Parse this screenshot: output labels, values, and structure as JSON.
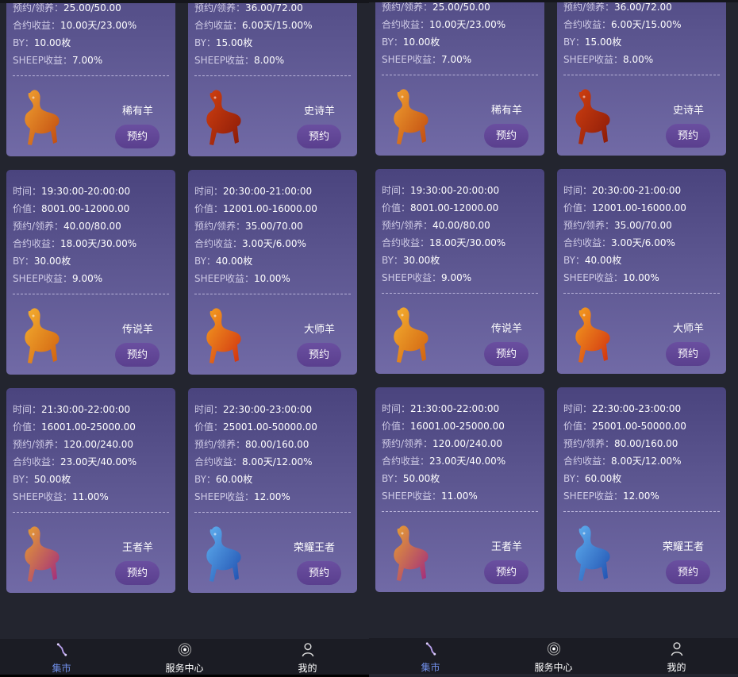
{
  "labels": {
    "time": "时间：",
    "value": "价值：",
    "reserve": "预约/领养：",
    "contract": "合约收益：",
    "by": "BY：",
    "sheep": "SHEEP收益："
  },
  "button_label": "预约",
  "colors": {
    "accent": "#6f8ee8",
    "card_top": "#4a447e",
    "card_bottom": "#716aa6",
    "button": "#5f4596"
  },
  "cards": [
    {
      "reserve": "25.00/50.00",
      "contract": "10.00天/23.00%",
      "by": "10.00枚",
      "sheep": "7.00%",
      "name": "稀有羊",
      "icon": "rare-sheep-icon",
      "c1": "#f0a030",
      "c2": "#c04a10",
      "cut": true
    },
    {
      "reserve": "36.00/72.00",
      "contract": "6.00天/15.00%",
      "by": "15.00枚",
      "sheep": "8.00%",
      "name": "史诗羊",
      "icon": "epic-sheep-icon",
      "c1": "#d04010",
      "c2": "#8a1a08",
      "cut": true
    },
    {
      "time": "19:30:00-20:00:00",
      "value": "8001.00-12000.00",
      "reserve": "40.00/80.00",
      "contract": "18.00天/30.00%",
      "by": "30.00枚",
      "sheep": "9.00%",
      "name": "传说羊",
      "icon": "legend-sheep-icon",
      "c1": "#f5b030",
      "c2": "#d06010"
    },
    {
      "time": "20:30:00-21:00:00",
      "value": "12001.00-16000.00",
      "reserve": "35.00/70.00",
      "contract": "3.00天/6.00%",
      "by": "40.00枚",
      "sheep": "10.00%",
      "name": "大师羊",
      "icon": "master-sheep-icon",
      "c1": "#f5a020",
      "c2": "#d03010"
    },
    {
      "time": "21:30:00-22:00:00",
      "value": "16001.00-25000.00",
      "reserve": "120.00/240.00",
      "contract": "23.00天/40.00%",
      "by": "50.00枚",
      "sheep": "11.00%",
      "name": "王者羊",
      "icon": "king-sheep-icon",
      "c1": "#e8a030",
      "c2": "#a02a80"
    },
    {
      "time": "22:30:00-23:00:00",
      "value": "25001.00-50000.00",
      "reserve": "80.00/160.00",
      "contract": "8.00天/12.00%",
      "by": "60.00枚",
      "sheep": "12.00%",
      "name": "荣耀王者",
      "icon": "glory-king-sheep-icon",
      "c1": "#60b0f0",
      "c2": "#2050b0"
    }
  ],
  "nav": [
    {
      "label": "集市",
      "icon": "market-icon",
      "active": true
    },
    {
      "label": "服务中心",
      "icon": "service-center-icon",
      "active": false
    },
    {
      "label": "我的",
      "icon": "profile-icon",
      "active": false
    }
  ]
}
